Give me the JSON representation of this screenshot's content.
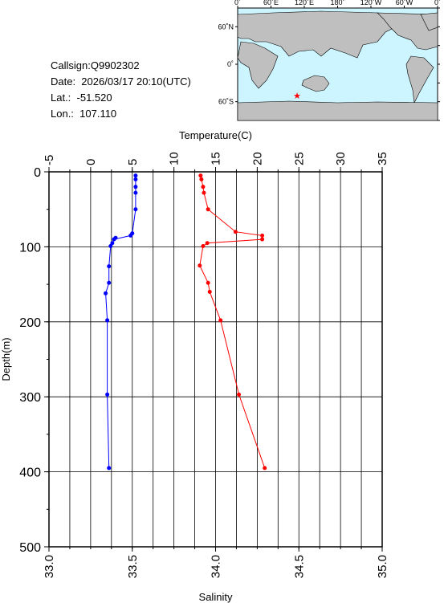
{
  "header": {
    "callsign": "Callsign:Q9902302",
    "date": "Date:  2026/03/17 20:10(UTC)",
    "lat": "Lat.:  -51.520",
    "lon": "Lon.:  107.110"
  },
  "map": {
    "top_labels": [
      "0˚",
      "60˚E",
      "120˚E",
      "180˚",
      "120˚W",
      "60˚W",
      "0˚"
    ],
    "left_labels": [
      "60˚N",
      "0˚",
      "60˚S"
    ],
    "marker": {
      "lat": -51.52,
      "lon": 107.11,
      "color": "#ff0000"
    },
    "ocean_color": "#ccf5ff",
    "land_color": "#bfbfbf"
  },
  "chart_data": {
    "type": "line",
    "title": "",
    "ylabel": "Depth(m)",
    "ylim": [
      0,
      500
    ],
    "yticks": [
      0,
      100,
      200,
      300,
      400,
      500
    ],
    "y_inverted": true,
    "grid": true,
    "top_axis": {
      "label": "Temperature(C)",
      "lim": [
        -5,
        35
      ],
      "ticks": [
        -5,
        0,
        5,
        10,
        15,
        20,
        25,
        30,
        35
      ]
    },
    "bottom_axis": {
      "label": "Salinity",
      "lim": [
        33.0,
        35.0
      ],
      "ticks": [
        "33.0",
        "33.5",
        "34.0",
        "34.5",
        "35.0"
      ]
    },
    "series": [
      {
        "axis": "bottom",
        "color": "#0000ff",
        "points": [
          {
            "x": 33.52,
            "y": 5
          },
          {
            "x": 33.52,
            "y": 10
          },
          {
            "x": 33.52,
            "y": 20
          },
          {
            "x": 33.52,
            "y": 28
          },
          {
            "x": 33.52,
            "y": 50
          },
          {
            "x": 33.5,
            "y": 82
          },
          {
            "x": 33.49,
            "y": 85
          },
          {
            "x": 33.39,
            "y": 90
          },
          {
            "x": 33.4,
            "y": 88
          },
          {
            "x": 33.38,
            "y": 95
          },
          {
            "x": 33.37,
            "y": 99
          },
          {
            "x": 33.36,
            "y": 126
          },
          {
            "x": 33.36,
            "y": 148
          },
          {
            "x": 33.34,
            "y": 162
          },
          {
            "x": 33.35,
            "y": 198
          },
          {
            "x": 33.35,
            "y": 297
          },
          {
            "x": 33.36,
            "y": 395
          }
        ]
      },
      {
        "axis": "top",
        "color": "#ff0000",
        "points": [
          {
            "x": 13.2,
            "y": 5
          },
          {
            "x": 13.3,
            "y": 10
          },
          {
            "x": 13.5,
            "y": 20
          },
          {
            "x": 13.6,
            "y": 28
          },
          {
            "x": 14.1,
            "y": 50
          },
          {
            "x": 17.4,
            "y": 80
          },
          {
            "x": 20.6,
            "y": 85
          },
          {
            "x": 20.6,
            "y": 90
          },
          {
            "x": 14.0,
            "y": 95
          },
          {
            "x": 13.5,
            "y": 99
          },
          {
            "x": 13.1,
            "y": 125
          },
          {
            "x": 14.1,
            "y": 148
          },
          {
            "x": 14.3,
            "y": 160
          },
          {
            "x": 15.6,
            "y": 198
          },
          {
            "x": 17.8,
            "y": 297
          },
          {
            "x": 20.9,
            "y": 395
          }
        ]
      }
    ]
  }
}
